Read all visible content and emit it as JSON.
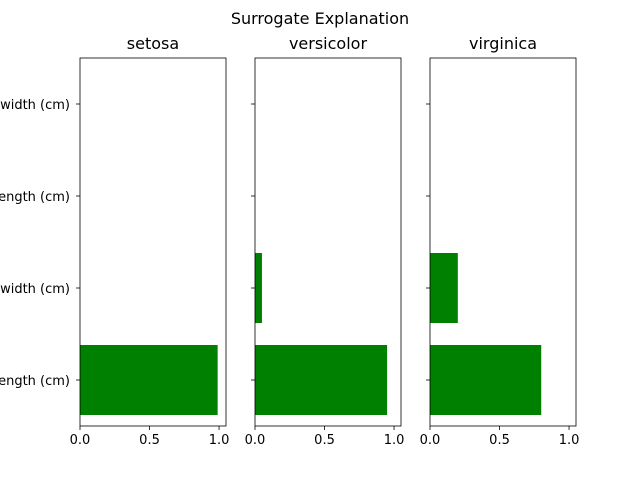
{
  "chart_data": {
    "type": "bar",
    "orientation": "horizontal",
    "title": "Surrogate Explanation",
    "categories": [
      "petal width (cm)",
      "petal length (cm)",
      "sepal width (cm)",
      "sepal length (cm)"
    ],
    "xlim": [
      0,
      1.05
    ],
    "xticks": [
      0.0,
      0.5,
      1.0
    ],
    "xtick_labels": [
      "0.0",
      "0.5",
      "1.0"
    ],
    "bar_color": "#008000",
    "grid": false,
    "panels": [
      {
        "title": "setosa",
        "values": [
          0,
          0,
          0,
          0.99
        ]
      },
      {
        "title": "versicolor",
        "values": [
          0,
          0,
          0.05,
          0.95
        ]
      },
      {
        "title": "virginica",
        "values": [
          0,
          0,
          0.2,
          0.8
        ]
      }
    ]
  }
}
